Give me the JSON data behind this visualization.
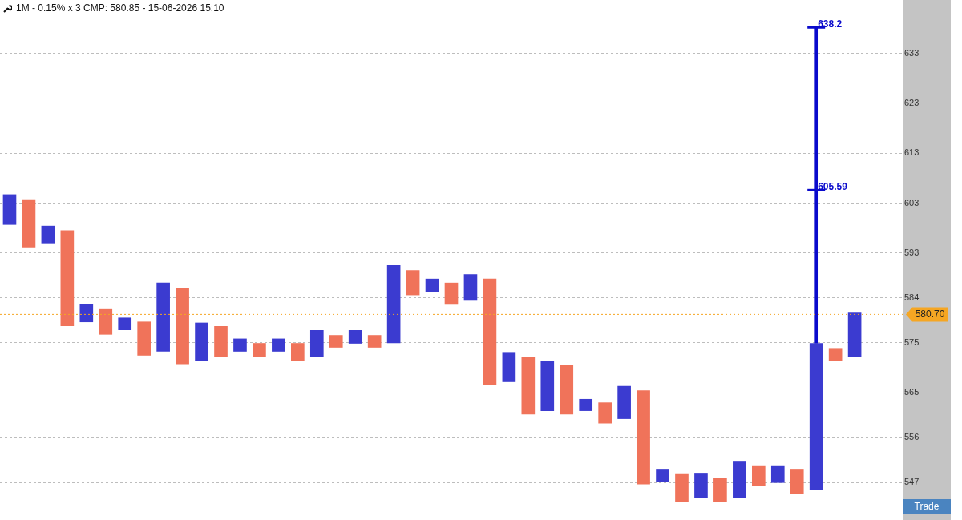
{
  "chart_data": {
    "type": "bar",
    "title": "1M - 0.15% x 3 CMP: 580.85 - 15-06-2026 15:10",
    "categories": [
      null,
      null,
      null,
      null,
      null,
      null,
      null,
      null,
      null,
      null,
      null,
      null,
      null,
      null,
      null,
      null,
      null,
      null,
      null,
      null,
      null,
      null,
      null,
      null,
      null,
      null,
      null,
      null,
      null,
      null,
      null,
      null,
      null,
      null,
      null,
      null,
      null,
      null,
      null,
      null,
      null,
      null,
      null,
      null,
      null,
      null,
      null
    ],
    "series": [
      {
        "color": "#3b3bd0",
        "marker": "cross",
        "base": [
          598.7,
          null,
          595.0,
          null,
          579.2,
          null,
          577.6,
          null,
          573.3,
          null,
          571.4,
          null,
          573.3,
          null,
          573.3,
          null,
          572.3,
          null,
          574.9,
          null,
          575.0,
          null,
          585.2,
          null,
          583.5,
          null,
          567.2,
          null,
          561.4,
          null,
          561.4,
          null,
          559.8,
          null,
          547.1,
          null,
          543.9,
          null,
          543.9,
          null,
          547.0,
          null,
          545.5,
          null,
          572.3,
          null,
          null
        ],
        "values": [
          6.0,
          null,
          3.4,
          null,
          3.5,
          null,
          2.4,
          null,
          13.7,
          null,
          7.6,
          null,
          2.5,
          null,
          2.5,
          null,
          5.2,
          null,
          2.6,
          null,
          15.5,
          null,
          2.6,
          null,
          5.2,
          null,
          5.9,
          null,
          10.0,
          null,
          2.3,
          null,
          6.5,
          null,
          2.6,
          null,
          5.0,
          null,
          7.4,
          null,
          3.4,
          null,
          29.4,
          null,
          8.7,
          null,
          null
        ]
      },
      {
        "color": "#f0735a",
        "marker": "circle",
        "base": [
          null,
          594.2,
          null,
          578.4,
          null,
          576.7,
          null,
          572.5,
          null,
          570.8,
          null,
          572.3,
          null,
          572.3,
          null,
          571.4,
          null,
          574.1,
          null,
          574.1,
          null,
          584.6,
          null,
          582.7,
          null,
          566.6,
          null,
          560.7,
          null,
          560.7,
          null,
          558.9,
          null,
          546.7,
          null,
          543.2,
          null,
          543.2,
          null,
          546.4,
          null,
          544.8,
          null,
          571.4,
          null,
          null,
          null
        ],
        "values": [
          null,
          9.5,
          null,
          19.1,
          null,
          5.0,
          null,
          6.7,
          null,
          15.2,
          null,
          6.0,
          null,
          2.6,
          null,
          3.5,
          null,
          2.4,
          null,
          2.4,
          null,
          4.9,
          null,
          4.3,
          null,
          21.2,
          null,
          11.5,
          null,
          9.8,
          null,
          4.1,
          null,
          18.7,
          null,
          5.6,
          null,
          4.7,
          null,
          4.0,
          null,
          4.9,
          null,
          2.5,
          null,
          null,
          null
        ]
      },
      {
        "color": "#0a0acc",
        "marker": "none",
        "base": [
          null,
          null,
          null,
          null,
          null,
          null,
          null,
          null,
          null,
          null,
          null,
          null,
          null,
          null,
          null,
          null,
          null,
          null,
          null,
          null,
          null,
          null,
          null,
          null,
          null,
          null,
          null,
          null,
          null,
          null,
          null,
          null,
          null,
          null,
          null,
          null,
          null,
          null,
          null,
          null,
          null,
          null,
          574.9,
          null,
          null,
          null,
          null
        ],
        "values": [
          null,
          null,
          null,
          null,
          null,
          null,
          null,
          null,
          null,
          null,
          null,
          null,
          null,
          null,
          null,
          null,
          null,
          null,
          null,
          null,
          null,
          null,
          null,
          null,
          null,
          null,
          null,
          null,
          null,
          null,
          null,
          null,
          null,
          null,
          null,
          null,
          null,
          null,
          null,
          null,
          null,
          null,
          30.7,
          null,
          null,
          null,
          null
        ]
      },
      {
        "color": "#0a0acc",
        "marker": "none",
        "base": [
          null,
          null,
          null,
          null,
          null,
          null,
          null,
          null,
          null,
          null,
          null,
          null,
          null,
          null,
          null,
          null,
          null,
          null,
          null,
          null,
          null,
          null,
          null,
          null,
          null,
          null,
          null,
          null,
          null,
          null,
          null,
          null,
          null,
          null,
          null,
          null,
          null,
          null,
          null,
          null,
          null,
          null,
          605.6,
          null,
          null,
          null,
          null
        ],
        "values": [
          null,
          null,
          null,
          null,
          null,
          null,
          null,
          null,
          null,
          null,
          null,
          null,
          null,
          null,
          null,
          null,
          null,
          null,
          null,
          null,
          null,
          null,
          null,
          null,
          null,
          null,
          null,
          null,
          null,
          null,
          null,
          null,
          null,
          null,
          null,
          null,
          null,
          null,
          null,
          null,
          null,
          null,
          32.6,
          null,
          null,
          null,
          null
        ]
      }
    ],
    "annotations": [
      "605.59",
      "638.2",
      "Trade"
    ],
    "ref_lines": [
      {
        "axis": "y",
        "value": 580.7,
        "label": "580.70",
        "color": "#f5a623"
      }
    ],
    "ylim": [
      539.5,
      643.7
    ],
    "yticks": [
      547,
      556,
      565,
      575,
      584,
      593,
      603,
      613,
      623,
      633
    ],
    "grid": "y",
    "tick_labels": "y",
    "legend": false
  }
}
